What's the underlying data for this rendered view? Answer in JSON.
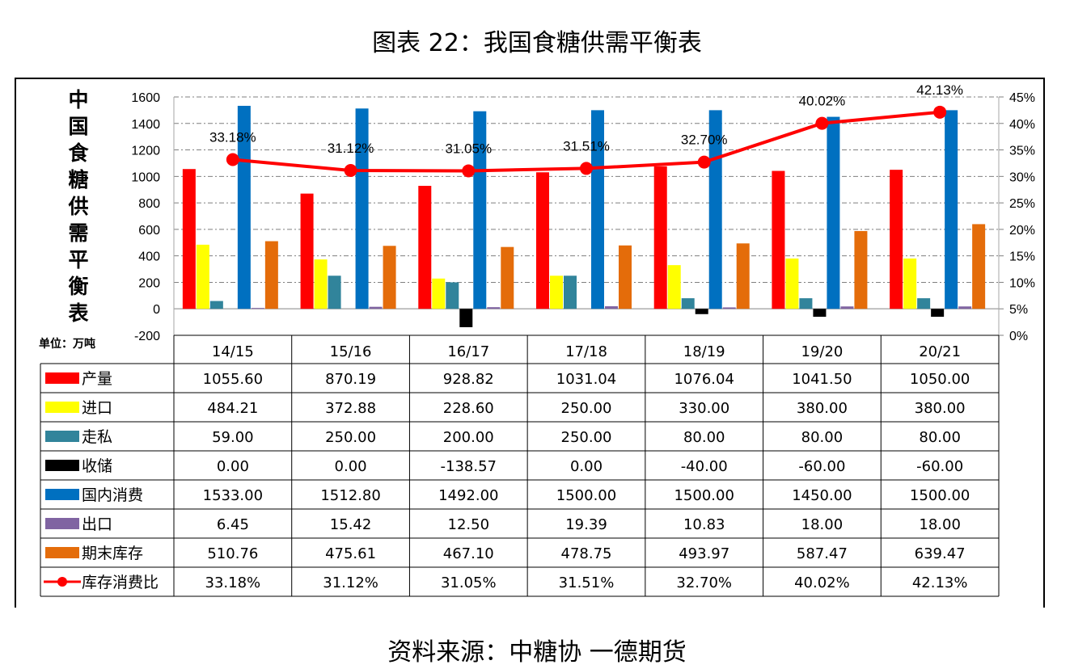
{
  "title": "图表 22：我国食糖供需平衡表",
  "source": "资料来源：中糖协 一德期货",
  "chart_data": {
    "type": "bar",
    "ylabel": "中国食糖供需平衡表",
    "unit_label": "单位：万吨",
    "categories": [
      "14/15",
      "15/16",
      "16/17",
      "17/18",
      "18/19",
      "19/20",
      "20/21"
    ],
    "ylim": [
      -200,
      1600
    ],
    "y_ticks": [
      "1600",
      "1400",
      "1200",
      "1000",
      "800",
      "600",
      "400",
      "200",
      "0",
      "-200"
    ],
    "y2lim": [
      0,
      45
    ],
    "y2_ticks": [
      "45%",
      "40%",
      "35%",
      "30%",
      "25%",
      "20%",
      "15%",
      "10%",
      "5%",
      "0%"
    ],
    "grid": "dashed",
    "series": [
      {
        "name": "产量",
        "kind": "bar",
        "color": "#FF0000",
        "values": [
          1055.6,
          870.19,
          928.82,
          1031.04,
          1076.04,
          1041.5,
          1050.0
        ],
        "labels": [
          "1055.60",
          "870.19",
          "928.82",
          "1031.04",
          "1076.04",
          "1041.50",
          "1050.00"
        ]
      },
      {
        "name": "进口",
        "kind": "bar",
        "color": "#FFFF00",
        "values": [
          484.21,
          372.88,
          228.6,
          250.0,
          330.0,
          380.0,
          380.0
        ],
        "labels": [
          "484.21",
          "372.88",
          "228.60",
          "250.00",
          "330.00",
          "380.00",
          "380.00"
        ]
      },
      {
        "name": "走私",
        "kind": "bar",
        "color": "#31849B",
        "values": [
          59.0,
          250.0,
          200.0,
          250.0,
          80.0,
          80.0,
          80.0
        ],
        "labels": [
          "59.00",
          "250.00",
          "200.00",
          "250.00",
          "80.00",
          "80.00",
          "80.00"
        ]
      },
      {
        "name": "收储",
        "kind": "bar",
        "color": "#000000",
        "values": [
          0.0,
          0.0,
          -138.57,
          0.0,
          -40.0,
          -60.0,
          -60.0
        ],
        "labels": [
          "0.00",
          "0.00",
          "-138.57",
          "0.00",
          "-40.00",
          "-60.00",
          "-60.00"
        ]
      },
      {
        "name": "国内消费",
        "kind": "bar",
        "color": "#0070C0",
        "values": [
          1533.0,
          1512.8,
          1492.0,
          1500.0,
          1500.0,
          1450.0,
          1500.0
        ],
        "labels": [
          "1533.00",
          "1512.80",
          "1492.00",
          "1500.00",
          "1500.00",
          "1450.00",
          "1500.00"
        ]
      },
      {
        "name": "出口",
        "kind": "bar",
        "color": "#8064A2",
        "values": [
          6.45,
          15.42,
          12.5,
          19.39,
          10.83,
          18.0,
          18.0
        ],
        "labels": [
          "6.45",
          "15.42",
          "12.50",
          "19.39",
          "10.83",
          "18.00",
          "18.00"
        ]
      },
      {
        "name": "期末库存",
        "kind": "bar",
        "color": "#E46C0A",
        "values": [
          510.76,
          475.61,
          467.1,
          478.75,
          493.97,
          587.47,
          639.47
        ],
        "labels": [
          "510.76",
          "475.61",
          "467.10",
          "478.75",
          "493.97",
          "587.47",
          "639.47"
        ]
      },
      {
        "name": "库存消费比",
        "kind": "line",
        "axis": "right",
        "color": "#FF0000",
        "values": [
          33.18,
          31.12,
          31.05,
          31.51,
          32.7,
          40.02,
          42.13
        ],
        "labels": [
          "33.18%",
          "31.12%",
          "31.05%",
          "31.51%",
          "32.70%",
          "40.02%",
          "42.13%"
        ]
      }
    ]
  }
}
